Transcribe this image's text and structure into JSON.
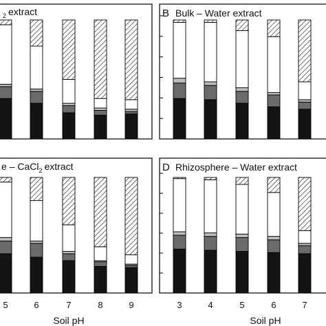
{
  "figure": {
    "segment_order": [
      "black",
      "darkgray",
      "lightgray",
      "white",
      "hatched"
    ],
    "colors": {
      "black": "#141414",
      "darkgray": "#6b6b6b",
      "lightgray": "#bdbdbd",
      "white": "#ffffff",
      "hatched": "hatch"
    }
  },
  "chart_data": [
    {
      "type": "bar",
      "panel_label": "",
      "title": "extract",
      "title_prefix": "",
      "title_sub": "2",
      "xlabel": "Soil pH",
      "x_ticks": [
        "5",
        "6",
        "7",
        "8",
        "9"
      ],
      "ylim": [
        0,
        1
      ],
      "stacked": true,
      "grid": false,
      "series": [
        {
          "values": [
            0.34,
            0.3,
            0.22,
            0.2,
            0.21
          ]
        },
        {
          "values": [
            0.1,
            0.1,
            0.06,
            0.04,
            0.02
          ]
        },
        {
          "values": [
            0.02,
            0.02,
            0.02,
            0.02,
            0.02
          ]
        },
        {
          "values": [
            0.5,
            0.36,
            0.2,
            0.08,
            0.08
          ]
        },
        {
          "values": [
            0.04,
            0.22,
            0.5,
            0.66,
            0.67
          ]
        }
      ]
    },
    {
      "type": "bar",
      "panel_label": "B",
      "title": "Bulk – Water extract",
      "xlabel": "",
      "x_ticks": [],
      "ylim": [
        0,
        1
      ],
      "stacked": true,
      "grid": false,
      "series": [
        {
          "values": [
            0.34,
            0.33,
            0.3,
            0.27,
            0.25
          ]
        },
        {
          "values": [
            0.13,
            0.12,
            0.1,
            0.1,
            0.06
          ]
        },
        {
          "values": [
            0.04,
            0.03,
            0.03,
            0.02,
            0.02
          ]
        },
        {
          "values": [
            0.47,
            0.5,
            0.48,
            0.47,
            0.15
          ]
        },
        {
          "values": [
            0.02,
            0.02,
            0.09,
            0.14,
            0.52
          ]
        }
      ]
    },
    {
      "type": "bar",
      "panel_label": "",
      "title": "extract",
      "title_prefix": "e – CaCl",
      "title_sub": "2",
      "xlabel": "",
      "x_ticks": [],
      "ylim": [
        0,
        1
      ],
      "stacked": true,
      "grid": false,
      "series": [
        {
          "values": [
            0.34,
            0.31,
            0.28,
            0.23,
            0.22
          ]
        },
        {
          "values": [
            0.11,
            0.12,
            0.06,
            0.04,
            0.02
          ]
        },
        {
          "values": [
            0.03,
            0.02,
            0.02,
            0.01,
            0.01
          ]
        },
        {
          "values": [
            0.48,
            0.35,
            0.23,
            0.12,
            0.08
          ]
        },
        {
          "values": [
            0.04,
            0.2,
            0.41,
            0.6,
            0.67
          ]
        }
      ]
    },
    {
      "type": "bar",
      "panel_label": "D",
      "title": "Rhizosphere – Water extract",
      "xlabel": "Soil pH",
      "x_ticks": [
        "3",
        "4",
        "5",
        "6",
        "7"
      ],
      "ylim": [
        0,
        1
      ],
      "stacked": true,
      "grid": false,
      "series": [
        {
          "values": [
            0.38,
            0.37,
            0.36,
            0.35,
            0.34
          ]
        },
        {
          "values": [
            0.12,
            0.12,
            0.12,
            0.11,
            0.07
          ]
        },
        {
          "values": [
            0.03,
            0.03,
            0.03,
            0.03,
            0.02
          ]
        },
        {
          "values": [
            0.46,
            0.46,
            0.43,
            0.38,
            0.11
          ]
        },
        {
          "values": [
            0.01,
            0.02,
            0.06,
            0.13,
            0.46
          ]
        }
      ]
    }
  ]
}
